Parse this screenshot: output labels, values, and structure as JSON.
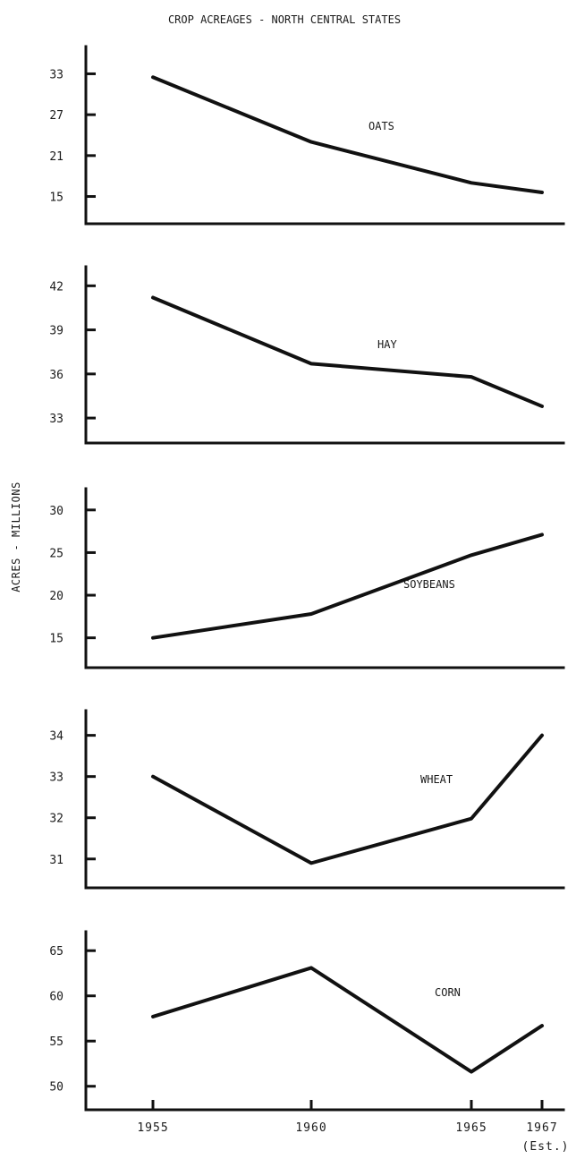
{
  "chart_data": {
    "type": "line",
    "title": "CROP ACREAGES - NORTH CENTRAL STATES",
    "ylabel": "ACRES - MILLIONS",
    "x": [
      "1955",
      "1960",
      "1965",
      "1967"
    ],
    "x_note": "(Est.)",
    "grid": false,
    "panels": [
      {
        "name": "OATS",
        "yticks": [
          15,
          21,
          27,
          33
        ],
        "ylim": [
          11,
          37
        ],
        "values": [
          32.5,
          23,
          17,
          15.6
        ]
      },
      {
        "name": "HAY",
        "yticks": [
          33,
          36,
          39,
          42
        ],
        "ylim": [
          31.3,
          43.3
        ],
        "values": [
          41.2,
          36.7,
          35.8,
          33.8
        ]
      },
      {
        "name": "SOYBEANS",
        "yticks": [
          15,
          20,
          25,
          30
        ],
        "ylim": [
          11.5,
          32.5
        ],
        "values": [
          15,
          17.8,
          24.7,
          27.1
        ]
      },
      {
        "name": "WHEAT",
        "yticks": [
          31,
          32,
          33,
          34
        ],
        "ylim": [
          30.3,
          34.6
        ],
        "values": [
          33,
          30.9,
          31.98,
          34
        ]
      },
      {
        "name": "CORN",
        "yticks": [
          50,
          55,
          60,
          65
        ],
        "ylim": [
          47.4,
          67.1
        ],
        "values": [
          57.7,
          63.1,
          51.6,
          56.7
        ]
      }
    ]
  }
}
